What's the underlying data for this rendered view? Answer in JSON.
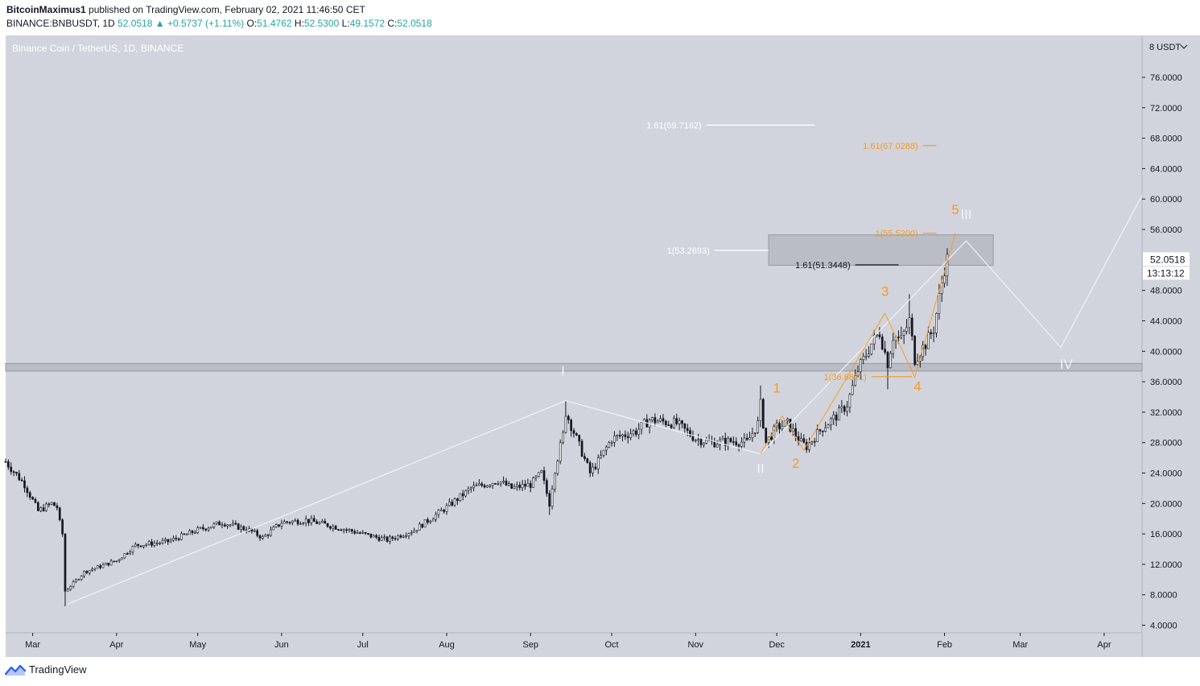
{
  "header": {
    "author": "BitcoinMaximus1",
    "published_text": "published on TradingView.com, February 02, 2021 11:46:50 CET",
    "symbol_line": "BINANCE:BNBUSDT, 1D",
    "change": "52.0518 ▲ +0.5737 (+1.11%)",
    "o_label": "O:",
    "o_value": "51.4762",
    "h_label": "H:",
    "h_value": "52.5300",
    "l_label": "L:",
    "l_value": "49.1572",
    "c_label": "C:",
    "c_value": "52.0518"
  },
  "footer": {
    "brand": "TradingView",
    "logo_icon": "tradingview-logo-icon"
  },
  "colors": {
    "background": "#d1d4dc",
    "candle": "#131722",
    "wave_white": "#f0f3fa",
    "wave_orange": "#f59a23",
    "zone": "#b2b5be",
    "axis_text": "#131722"
  },
  "chart_data": {
    "type": "candlestick",
    "title": "Binance Coin / TetherUS, 1D, BINANCE",
    "y_unit": "USDT",
    "ylim": [
      3.0,
      81.5
    ],
    "y_ticks": [
      "4.0000",
      "8.0000",
      "12.0000",
      "16.0000",
      "20.0000",
      "24.0000",
      "28.0000",
      "32.0000",
      "36.0000",
      "40.0000",
      "44.0000",
      "48.0000",
      "56.0000",
      "60.0000",
      "64.0000",
      "68.0000",
      "72.0000",
      "76.0000"
    ],
    "y_top_label": "8 USDT",
    "x_range": [
      "2020-02-20",
      "2021-04-15"
    ],
    "x_ticks": [
      {
        "date": "2020-03-01",
        "label": "Mar"
      },
      {
        "date": "2020-04-01",
        "label": "Apr"
      },
      {
        "date": "2020-05-01",
        "label": "May"
      },
      {
        "date": "2020-06-01",
        "label": "Jun"
      },
      {
        "date": "2020-07-01",
        "label": "Jul"
      },
      {
        "date": "2020-08-01",
        "label": "Aug"
      },
      {
        "date": "2020-09-01",
        "label": "Sep"
      },
      {
        "date": "2020-10-01",
        "label": "Oct"
      },
      {
        "date": "2020-11-01",
        "label": "Nov"
      },
      {
        "date": "2020-12-01",
        "label": "Dec"
      },
      {
        "date": "2021-01-01",
        "label": "2021"
      },
      {
        "date": "2021-02-01",
        "label": "Feb"
      },
      {
        "date": "2021-03-01",
        "label": "Mar"
      },
      {
        "date": "2021-04-01",
        "label": "Apr"
      }
    ],
    "price_path": [
      [
        "2020-02-20",
        25.5
      ],
      [
        "2020-02-27",
        22.5
      ],
      [
        "2020-03-03",
        19.0
      ],
      [
        "2020-03-08",
        20.0
      ],
      [
        "2020-03-10",
        19.5
      ],
      [
        "2020-03-11",
        17.5
      ],
      [
        "2020-03-12",
        16.0
      ],
      [
        "2020-03-13",
        8.5
      ],
      [
        "2020-03-16",
        9.5
      ],
      [
        "2020-03-20",
        11.0
      ],
      [
        "2020-04-01",
        12.5
      ],
      [
        "2020-04-08",
        14.5
      ],
      [
        "2020-04-20",
        15.0
      ],
      [
        "2020-05-01",
        16.5
      ],
      [
        "2020-05-10",
        17.5
      ],
      [
        "2020-05-20",
        16.5
      ],
      [
        "2020-05-25",
        15.5
      ],
      [
        "2020-06-01",
        17.5
      ],
      [
        "2020-06-10",
        17.8
      ],
      [
        "2020-06-20",
        17.0
      ],
      [
        "2020-07-01",
        16.0
      ],
      [
        "2020-07-10",
        15.2
      ],
      [
        "2020-07-20",
        16.5
      ],
      [
        "2020-08-01",
        19.5
      ],
      [
        "2020-08-10",
        22.0
      ],
      [
        "2020-08-20",
        23.0
      ],
      [
        "2020-08-25",
        22.0
      ],
      [
        "2020-09-01",
        22.5
      ],
      [
        "2020-09-05",
        24.0
      ],
      [
        "2020-09-08",
        20.0
      ],
      [
        "2020-09-10",
        24.5
      ],
      [
        "2020-09-13",
        29.0
      ],
      [
        "2020-09-14",
        32.0
      ],
      [
        "2020-09-18",
        28.5
      ],
      [
        "2020-09-23",
        24.0
      ],
      [
        "2020-09-26",
        25.5
      ],
      [
        "2020-10-01",
        28.5
      ],
      [
        "2020-10-10",
        29.5
      ],
      [
        "2020-10-15",
        31.0
      ],
      [
        "2020-10-25",
        30.5
      ],
      [
        "2020-11-01",
        28.5
      ],
      [
        "2020-11-07",
        28.0
      ],
      [
        "2020-11-15",
        28.2
      ],
      [
        "2020-11-20",
        28.0
      ],
      [
        "2020-11-24",
        30.5
      ],
      [
        "2020-11-25",
        33.0
      ],
      [
        "2020-11-27",
        28.0
      ],
      [
        "2020-12-01",
        30.0
      ],
      [
        "2020-12-05",
        30.5
      ],
      [
        "2020-12-10",
        28.0
      ],
      [
        "2020-12-12",
        27.5
      ],
      [
        "2020-12-18",
        30.0
      ],
      [
        "2020-12-23",
        31.5
      ],
      [
        "2020-12-27",
        33.0
      ],
      [
        "2020-12-31",
        37.5
      ],
      [
        "2021-01-05",
        41.0
      ],
      [
        "2021-01-08",
        42.5
      ],
      [
        "2021-01-11",
        38.5
      ],
      [
        "2021-01-13",
        42.0
      ],
      [
        "2021-01-16",
        41.5
      ],
      [
        "2021-01-19",
        44.0
      ],
      [
        "2021-01-21",
        39.0
      ],
      [
        "2021-01-25",
        41.0
      ],
      [
        "2021-01-28",
        43.0
      ],
      [
        "2021-01-30",
        47.0
      ],
      [
        "2021-02-01",
        51.0
      ],
      [
        "2021-02-02",
        52.05
      ]
    ],
    "spikes": [
      {
        "date": "2020-03-13",
        "low": 6.5
      },
      {
        "date": "2020-09-08",
        "low": 18.5
      },
      {
        "date": "2020-09-14",
        "high": 33.5
      },
      {
        "date": "2020-11-25",
        "high": 35.5
      },
      {
        "date": "2021-01-11",
        "low": 35.0
      },
      {
        "date": "2021-01-19",
        "high": 47.5
      }
    ],
    "series": [
      {
        "name": "",
        "color": "#f0f3fa",
        "points": [
          {
            "date": "2020-03-14",
            "price": 6.8
          },
          {
            "date": "2020-09-14",
            "price": 33.5
          },
          {
            "date": "2020-11-25",
            "price": 26.5
          },
          {
            "date": "2021-02-09",
            "price": 54.5
          },
          {
            "date": "2021-03-16",
            "price": 40.5
          },
          {
            "date": "2021-04-15",
            "price": 60.5
          }
        ]
      },
      {
        "name": "",
        "color": "#f59a23",
        "points": [
          {
            "date": "2020-11-25",
            "price": 26.5
          },
          {
            "date": "2020-12-03",
            "price": 31.5
          },
          {
            "date": "2020-12-11",
            "price": 27.0
          },
          {
            "date": "2021-01-10",
            "price": 45.0
          },
          {
            "date": "2021-01-21",
            "price": 36.6
          },
          {
            "date": "2021-02-05",
            "price": 55.5
          }
        ]
      }
    ],
    "wave_labels": [
      {
        "text": "I",
        "date": "2020-09-13",
        "price": 36.8,
        "color": "#f0f3fa"
      },
      {
        "text": "II",
        "date": "2020-11-25",
        "price": 24.0,
        "color": "#f0f3fa"
      },
      {
        "text": "III",
        "date": "2021-02-09",
        "price": 57.4,
        "color": "#f0f3fa"
      },
      {
        "text": "IV",
        "date": "2021-03-18",
        "price": 37.7,
        "color": "#f0f3fa"
      },
      {
        "text": "1",
        "date": "2020-12-01",
        "price": 34.6,
        "color": "#f59a23"
      },
      {
        "text": "2",
        "date": "2020-12-08",
        "price": 24.7,
        "color": "#f59a23"
      },
      {
        "text": "3",
        "date": "2021-01-10",
        "price": 47.3,
        "color": "#f59a23"
      },
      {
        "text": "4",
        "date": "2021-01-22",
        "price": 34.8,
        "color": "#f59a23"
      },
      {
        "text": "5",
        "date": "2021-02-05",
        "price": 58.0,
        "color": "#f59a23"
      }
    ],
    "fib_levels": [
      {
        "label": "1.61(69.7162)",
        "price": 69.7162,
        "from": "2020-11-05",
        "to": "2020-12-15",
        "color": "#ffffff"
      },
      {
        "label": "1.61(67.0288)",
        "price": 67.0288,
        "from": "2021-01-24",
        "to": "2021-01-29",
        "color": "#f59a23"
      },
      {
        "label": "1(55.5200)",
        "price": 55.52,
        "from": "2021-01-24",
        "to": "2021-01-29",
        "color": "#f59a23"
      },
      {
        "label": "1(53.2693)",
        "price": 53.2693,
        "from": "2020-11-08",
        "to": "2020-11-28",
        "color": "#ffffff"
      },
      {
        "label": "1.61(51.3448)",
        "price": 51.3448,
        "from": "2020-12-30",
        "to": "2021-01-15",
        "color": "#131722"
      },
      {
        "label": "1(36.6631)",
        "price": 36.6631,
        "from": "2021-01-05",
        "to": "2021-01-20",
        "color": "#f59a23"
      }
    ],
    "zones": [
      {
        "from": "2020-11-28",
        "to": "2021-02-19",
        "low": 51.3,
        "high": 55.3
      },
      {
        "from": "2020-02-20",
        "to": "2021-04-15",
        "low": 37.4,
        "high": 38.4
      }
    ],
    "last_price": "52.0518",
    "countdown": "13:13:12"
  }
}
